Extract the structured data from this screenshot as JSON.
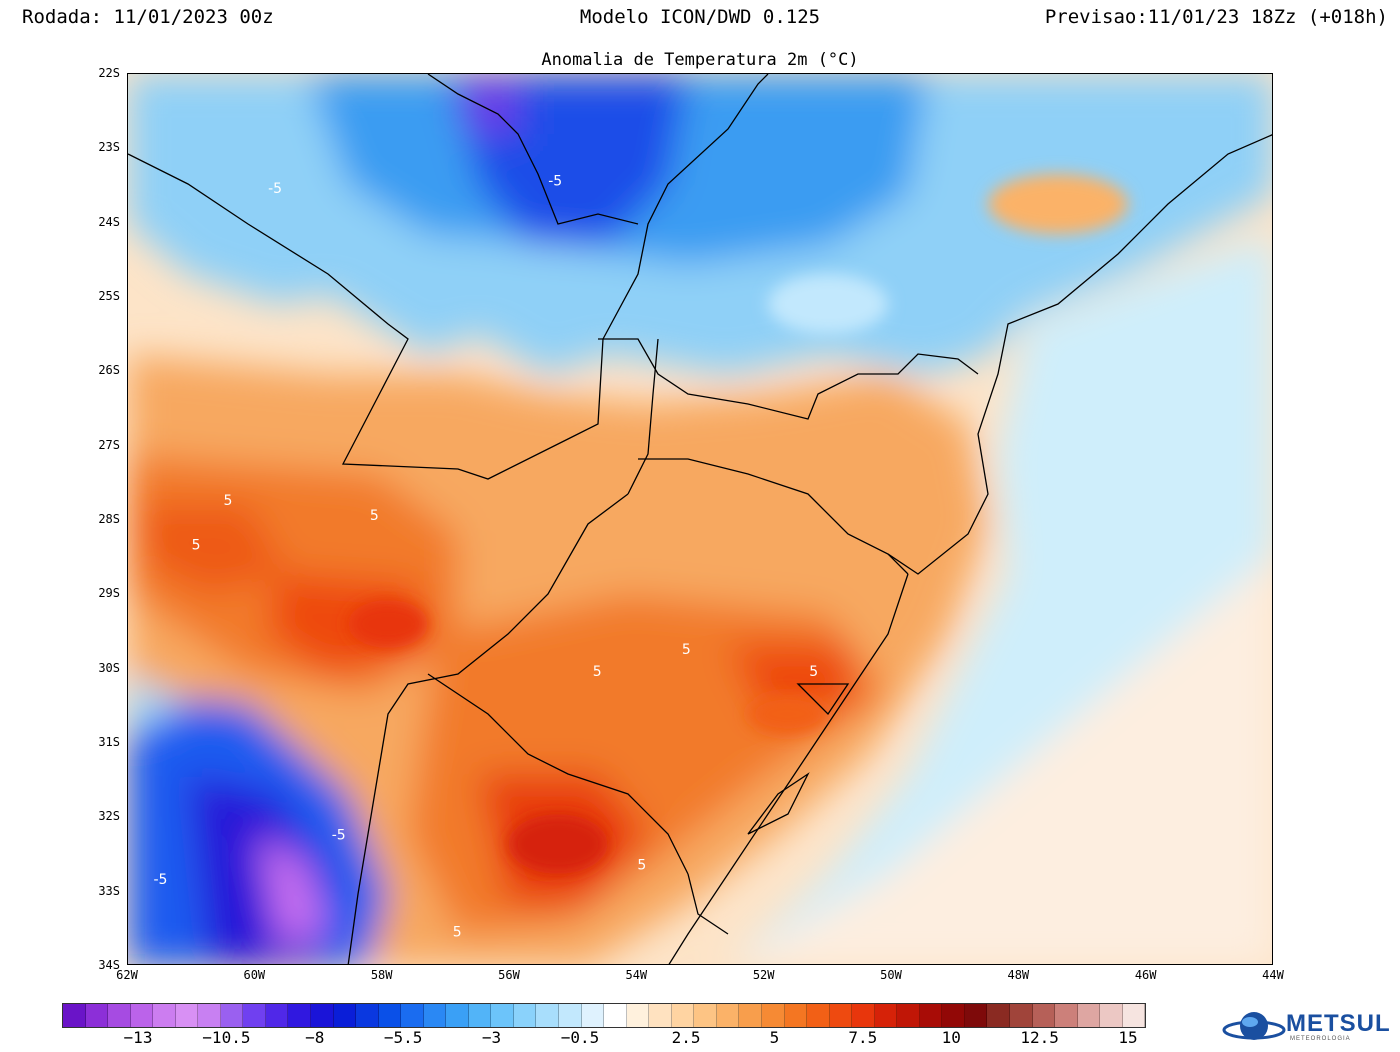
{
  "header": {
    "run": "Rodada: 11/01/2023 00z",
    "model": "Modelo ICON/DWD 0.125",
    "forecast": "Previsao:11/01/23 18Zz (+018h)"
  },
  "title": "Anomalia de Temperatura 2m (°C)",
  "map_extent": {
    "lon_min": -62,
    "lon_max": -44,
    "lat_min": -34,
    "lat_max": -22
  },
  "lat_labels": [
    "22S",
    "23S",
    "24S",
    "25S",
    "26S",
    "27S",
    "28S",
    "29S",
    "30S",
    "31S",
    "32S",
    "33S",
    "34S"
  ],
  "lon_labels": [
    "62W",
    "60W",
    "58W",
    "56W",
    "54W",
    "52W",
    "50W",
    "48W",
    "46W",
    "44W"
  ],
  "contour_labels": [
    {
      "text": "-5",
      "lon": -59.8,
      "lat": -23.6
    },
    {
      "text": "-5",
      "lon": -55.4,
      "lat": -23.5
    },
    {
      "text": "5",
      "lon": -60.5,
      "lat": -27.8
    },
    {
      "text": "5",
      "lon": -61.0,
      "lat": -28.4
    },
    {
      "text": "5",
      "lon": -58.2,
      "lat": -28.0
    },
    {
      "text": "5",
      "lon": -53.3,
      "lat": -29.8
    },
    {
      "text": "5",
      "lon": -54.7,
      "lat": -30.1
    },
    {
      "text": "5",
      "lon": -51.3,
      "lat": -30.1
    },
    {
      "text": "-5",
      "lon": -58.8,
      "lat": -32.3
    },
    {
      "text": "-5",
      "lon": -61.6,
      "lat": -32.9
    },
    {
      "text": "5",
      "lon": -56.9,
      "lat": -33.6
    },
    {
      "text": "5",
      "lon": -54.0,
      "lat": -32.7
    }
  ],
  "colorbar": {
    "colors": [
      "#6a14c8",
      "#8c2fd8",
      "#a64be2",
      "#bb63ea",
      "#cc7df0",
      "#d890f4",
      "#c880f2",
      "#9a60f0",
      "#7040f0",
      "#5028e8",
      "#3018e0",
      "#1a14d8",
      "#0a1ed8",
      "#0a38e0",
      "#0a50e8",
      "#1a6cf0",
      "#2a88f4",
      "#3aa0f6",
      "#52b4f8",
      "#6cc4fa",
      "#8ad2fb",
      "#a8defc",
      "#c2e8fd",
      "#dff2fe",
      "#ffffff",
      "#fff1dd",
      "#ffe2c0",
      "#ffd4a2",
      "#fdc484",
      "#fbb268",
      "#f89e4c",
      "#f68a34",
      "#f47622",
      "#f26016",
      "#ee4a10",
      "#e8360c",
      "#d62208",
      "#c01606",
      "#a80c06",
      "#920806",
      "#7e0a0a",
      "#8a2a22",
      "#a0443a",
      "#b66058",
      "#cc807a",
      "#dea6a2",
      "#ecc8c4",
      "#f6e4e0"
    ],
    "labels": [
      "−13",
      "−10.5",
      "−8",
      "−5.5",
      "−3",
      "−0.5",
      "2.5",
      "5",
      "7.5",
      "10",
      "12.5",
      "15"
    ],
    "label_values": [
      -13,
      -10.5,
      -8,
      -5.5,
      -3,
      -0.5,
      2.5,
      5,
      7.5,
      10,
      12.5,
      15
    ]
  },
  "logo": {
    "name": "METSUL",
    "tagline": "METEOROLOGIA"
  }
}
